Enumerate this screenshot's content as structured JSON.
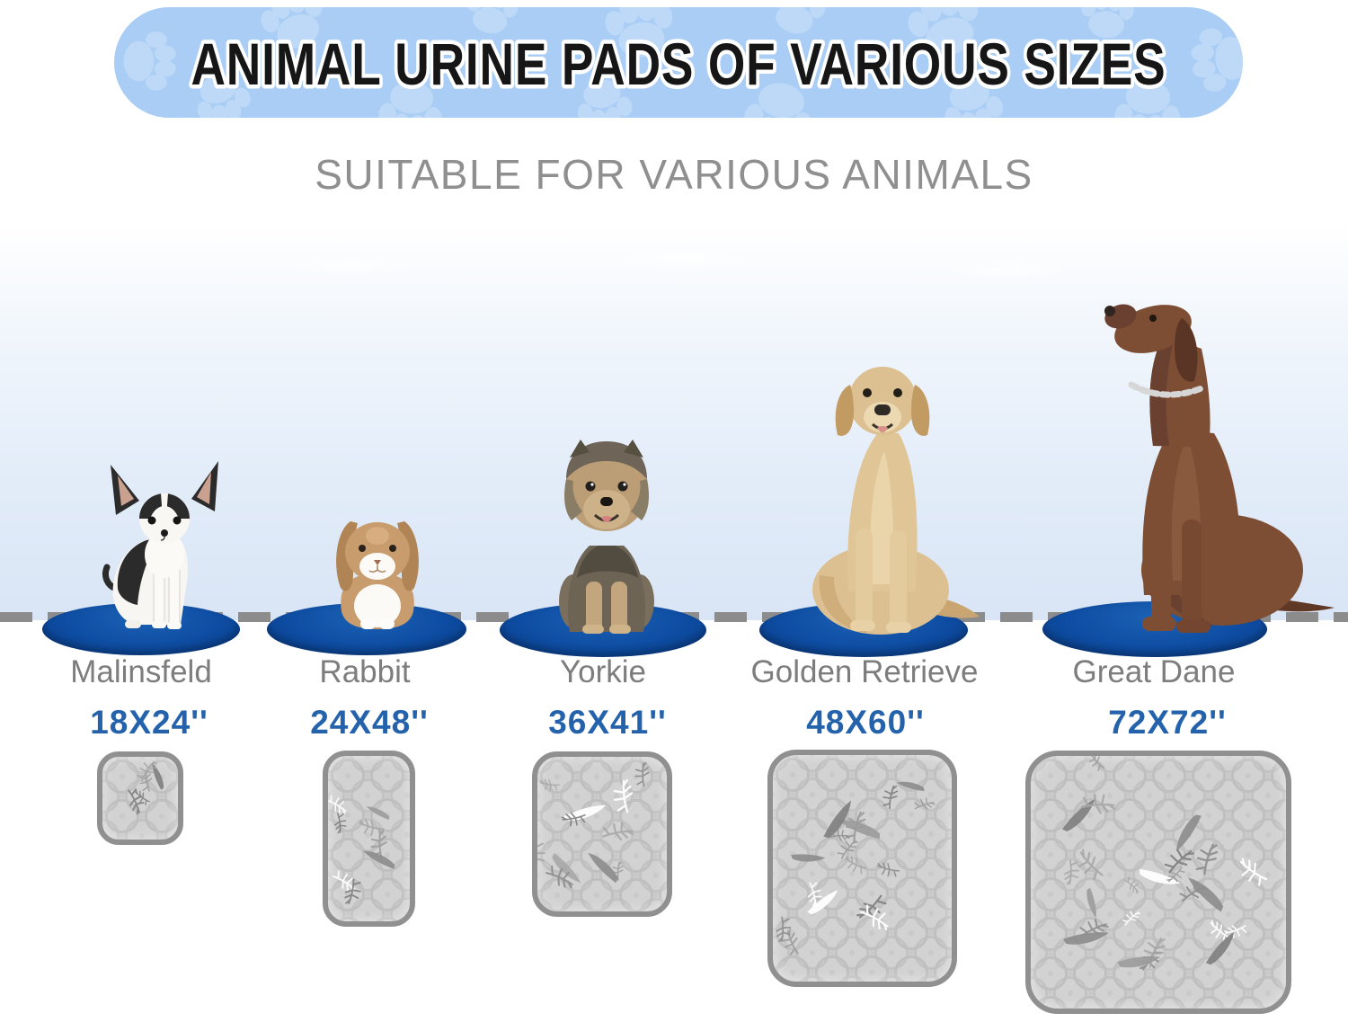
{
  "banner": {
    "title": "ANIMAL URINE PADS OF VARIOUS SIZES"
  },
  "subtitle": "SUITABLE FOR VARIOUS ANIMALS",
  "columns": [
    {
      "animal": "Malinsfeld",
      "pad_size": "18X24''"
    },
    {
      "animal": "Rabbit",
      "pad_size": "24X48''"
    },
    {
      "animal": "Yorkie",
      "pad_size": "36X41''"
    },
    {
      "animal": "Golden Retrieve",
      "pad_size": "48X60''"
    },
    {
      "animal": "Great Dane",
      "pad_size": "72X72''"
    }
  ],
  "colors": {
    "banner_bg": "#a9cdf4",
    "paw_print": "#c3dcf8",
    "title_text": "#161616",
    "subtitle_text": "#8f8f8f",
    "name_text": "#7d7d7d",
    "size_text": "#2463ab",
    "ellipse_blue": "#0e4da3",
    "dash_gray": "#8c8c8c",
    "pad_fill": "#d2d2d2",
    "pad_border": "#909090"
  }
}
